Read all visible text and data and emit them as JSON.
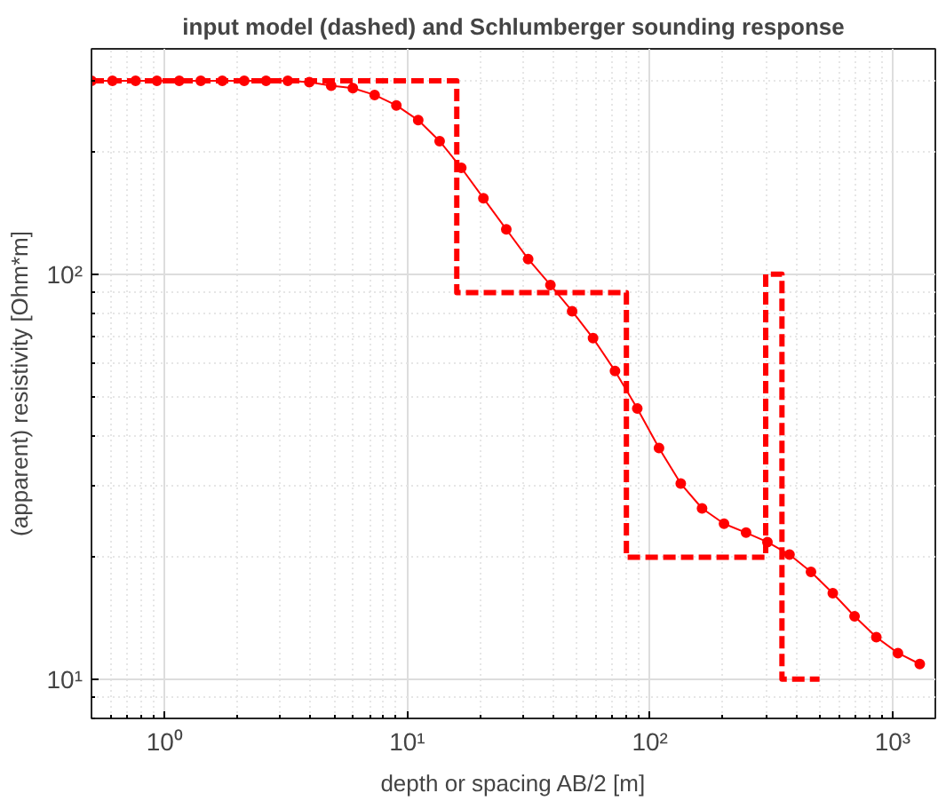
{
  "chart_data": {
    "type": "line",
    "title": "input model (dashed) and Schlumberger sounding response",
    "xlabel": "depth or spacing AB/2 [m]",
    "ylabel": "(apparent) resistivity [Ohm*m]",
    "log": "xy",
    "grid": true,
    "xlim": [
      0.5,
      1500
    ],
    "ylim": [
      8,
      360
    ],
    "xticks": [
      {
        "value": 1,
        "label": "10⁰"
      },
      {
        "value": 10,
        "label": "10¹"
      },
      {
        "value": 100,
        "label": "10²"
      },
      {
        "value": 1000,
        "label": "10³"
      }
    ],
    "yticks": [
      {
        "value": 10,
        "label": "10¹"
      },
      {
        "value": 100,
        "label": "10²"
      }
    ],
    "series": [
      {
        "color": "#ff0000",
        "line_style": "dashed",
        "marker": "none",
        "x": [
          0.5,
          16,
          16,
          80,
          80,
          300,
          300,
          350,
          350,
          500
        ],
        "values": [
          300,
          300,
          90,
          90,
          20,
          20,
          100,
          100,
          10,
          10
        ]
      },
      {
        "color": "#ff0000",
        "line_style": "solid",
        "marker": "circle",
        "x": [
          0.5,
          0.61,
          0.76,
          0.93,
          1.15,
          1.41,
          1.73,
          2.13,
          2.62,
          3.22,
          3.95,
          4.86,
          5.97,
          7.34,
          9.02,
          11.1,
          13.6,
          16.7,
          20.6,
          25.6,
          31.5,
          38.9,
          47.8,
          58.3,
          71.8,
          88.7,
          109,
          134,
          164,
          202,
          249,
          305,
          376,
          461,
          567,
          697,
          857,
          1052,
          1294
        ],
        "values": [
          300,
          300,
          300,
          300,
          300,
          300,
          300,
          300,
          300,
          300,
          298,
          292,
          288,
          277,
          261,
          240,
          213,
          183,
          154,
          129,
          109,
          94,
          81,
          69.5,
          57.7,
          46.6,
          37.2,
          30.4,
          26.4,
          24.2,
          23.0,
          21.8,
          20.3,
          18.4,
          16.3,
          14.3,
          12.7,
          11.6,
          10.9
        ]
      }
    ]
  }
}
